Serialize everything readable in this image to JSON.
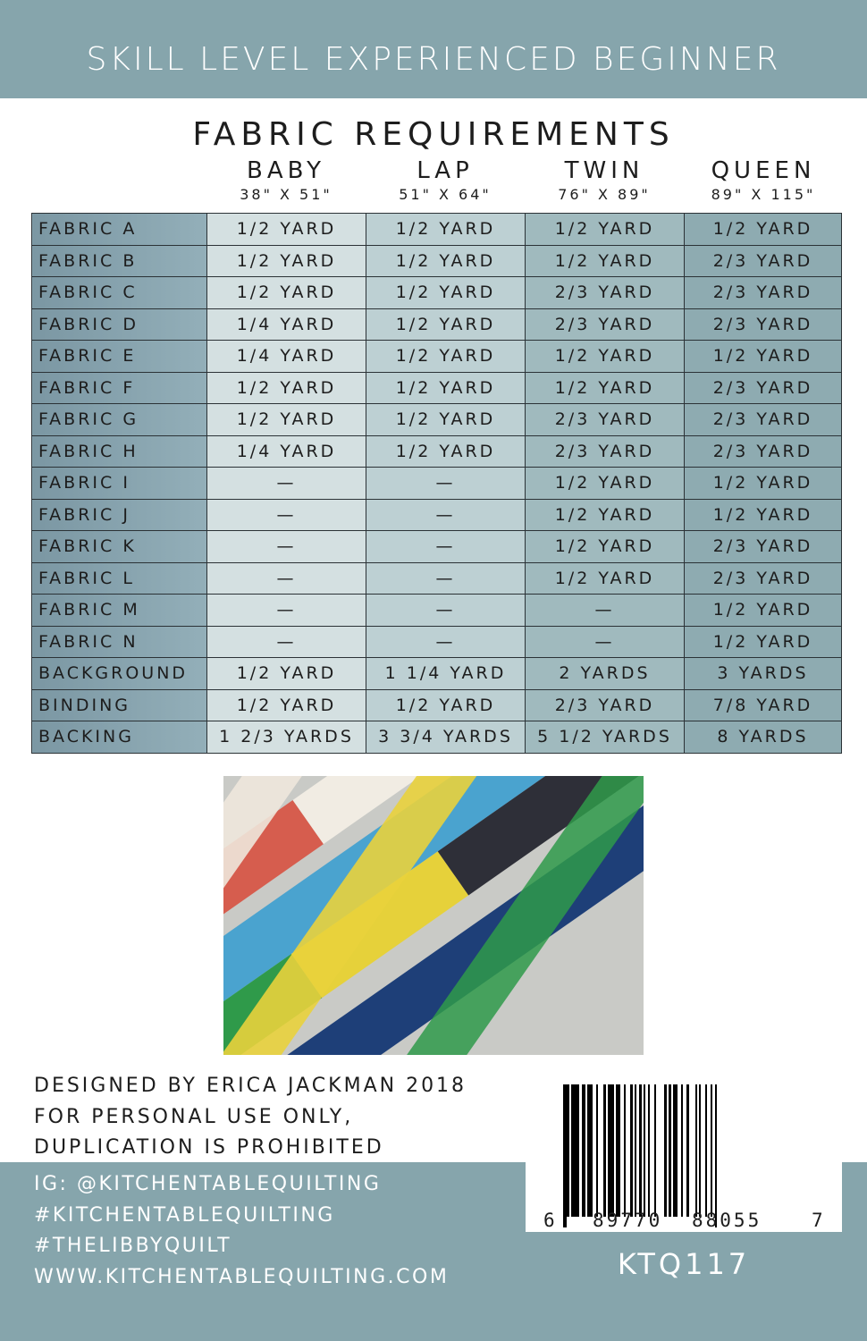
{
  "banner": "SKILL LEVEL EXPERIENCED BEGINNER",
  "title": "FABRIC REQUIREMENTS",
  "columns": [
    {
      "name": "BABY",
      "size": "38\" X 51\""
    },
    {
      "name": "LAP",
      "size": "51\" X 64\""
    },
    {
      "name": "TWIN",
      "size": "76\" X 89\""
    },
    {
      "name": "QUEEN",
      "size": "89\" X 115\""
    }
  ],
  "rows": [
    {
      "label": "FABRIC A",
      "values": [
        "1/2 YARD",
        "1/2 YARD",
        "1/2 YARD",
        "1/2 YARD"
      ]
    },
    {
      "label": "FABRIC B",
      "values": [
        "1/2 YARD",
        "1/2 YARD",
        "1/2 YARD",
        "2/3 YARD"
      ]
    },
    {
      "label": "FABRIC C",
      "values": [
        "1/2 YARD",
        "1/2 YARD",
        "2/3 YARD",
        "2/3 YARD"
      ]
    },
    {
      "label": "FABRIC D",
      "values": [
        "1/4 YARD",
        "1/2 YARD",
        "2/3 YARD",
        "2/3 YARD"
      ]
    },
    {
      "label": "FABRIC E",
      "values": [
        "1/4 YARD",
        "1/2 YARD",
        "1/2 YARD",
        "1/2 YARD"
      ]
    },
    {
      "label": "FABRIC F",
      "values": [
        "1/2 YARD",
        "1/2 YARD",
        "1/2 YARD",
        "2/3 YARD"
      ]
    },
    {
      "label": "FABRIC G",
      "values": [
        "1/2 YARD",
        "1/2 YARD",
        "2/3 YARD",
        "2/3 YARD"
      ]
    },
    {
      "label": "FABRIC H",
      "values": [
        "1/4 YARD",
        "1/2 YARD",
        "2/3 YARD",
        "2/3 YARD"
      ]
    },
    {
      "label": "FABRIC I",
      "values": [
        "—",
        "—",
        "1/2 YARD",
        "1/2 YARD"
      ]
    },
    {
      "label": "FABRIC J",
      "values": [
        "—",
        "—",
        "1/2 YARD",
        "1/2 YARD"
      ]
    },
    {
      "label": "FABRIC K",
      "values": [
        "—",
        "—",
        "1/2 YARD",
        "2/3 YARD"
      ]
    },
    {
      "label": "FABRIC L",
      "values": [
        "—",
        "—",
        "1/2 YARD",
        "2/3 YARD"
      ]
    },
    {
      "label": "FABRIC M",
      "values": [
        "—",
        "—",
        "—",
        "1/2 YARD"
      ]
    },
    {
      "label": "FABRIC N",
      "values": [
        "—",
        "—",
        "—",
        "1/2 YARD"
      ]
    },
    {
      "label": "BACKGROUND",
      "values": [
        "1/2 YARD",
        "1 1/4 YARD",
        "2 YARDS",
        "3 YARDS"
      ]
    },
    {
      "label": "BINDING",
      "values": [
        "1/2 YARD",
        "1/2 YARD",
        "2/3 YARD",
        "7/8 YARD"
      ]
    },
    {
      "label": "BACKING",
      "values": [
        "1 2/3 YARDS",
        "3 3/4 YARDS",
        "5 1/2 YARDS",
        "8 YARDS"
      ]
    }
  ],
  "credits": [
    "DESIGNED BY ERICA JACKMAN 2018",
    "FOR PERSONAL USE ONLY,",
    "DUPLICATION IS PROHIBITED"
  ],
  "social": [
    "IG: @KITCHENTABLEQUILTING",
    "#KITCHENTABLEQUILTING",
    "#THELIBBYQUILT",
    "WWW.KITCHENTABLEQUILTING.COM"
  ],
  "barcode": {
    "first": "6",
    "left": "89770",
    "right": "88055",
    "last": "7"
  },
  "sku": "KTQ117",
  "colors": {
    "banner": "#86a5ac",
    "baby": "#d4e0e1",
    "lap": "#bdd0d3",
    "twin": "#a0babe",
    "queen": "#8eabb1"
  }
}
